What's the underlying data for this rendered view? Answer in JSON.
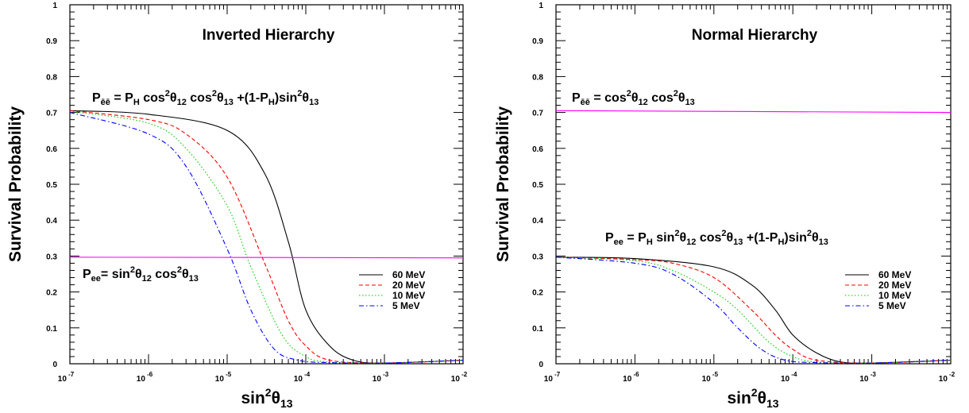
{
  "chart_data": [
    {
      "type": "line",
      "title": "Inverted Hierarchy",
      "ylabel": "Survival Probability",
      "xlabel": {
        "base": "sin",
        "sup": "2",
        "theta": "θ",
        "sub": "13"
      },
      "xscale": "log",
      "xlim": [
        1e-07,
        0.01
      ],
      "ylim": [
        0,
        1
      ],
      "x_ticks": [
        {
          "base": "10",
          "exp": "-7"
        },
        {
          "base": "10",
          "exp": "-6"
        },
        {
          "base": "10",
          "exp": "-5"
        },
        {
          "base": "10",
          "exp": "-4"
        },
        {
          "base": "10",
          "exp": "-3"
        },
        {
          "base": "10",
          "exp": "-2"
        }
      ],
      "y_ticks": [
        "0",
        "0.1",
        "0.2",
        "0.3",
        "0.4",
        "0.5",
        "0.6",
        "0.7",
        "0.8",
        "0.9",
        "1"
      ],
      "annotations": {
        "top": {
          "P": "P",
          "sub1": "ēē",
          "t1": " = P",
          "subH": "H",
          "t2": " cos",
          "sup1": "2",
          "theta": "θ",
          "sub12": "12",
          "t3": " cos",
          "sup2": "2",
          "sub13": "13",
          "t4": " +(1-P",
          "subH2": "H",
          "t5": ")sin",
          "sup3": "2",
          "sub13b": "13"
        },
        "bottom": {
          "P": "P",
          "sub1": "ee",
          "t1": "= sin",
          "sup1": "2",
          "theta": "θ",
          "sub12": "12",
          "t2": " cos",
          "sup2": "2",
          "sub13": "13"
        }
      },
      "legend": {
        "position": "right",
        "entries": [
          "60 MeV",
          "20 MeV",
          "10 MeV",
          "5 MeV"
        ]
      },
      "series": [
        {
          "name": "60 MeV",
          "color": "#000000",
          "dash": "solid",
          "x": [
            1e-07,
            1e-06,
            1e-05,
            3e-05,
            6e-05,
            0.0001,
            0.0002,
            0.0004,
            0.001,
            0.01
          ],
          "y": [
            0.705,
            0.695,
            0.65,
            0.53,
            0.34,
            0.15,
            0.05,
            0.01,
            0.002,
            0.01
          ]
        },
        {
          "name": "20 MeV",
          "color": "#ff0000",
          "dash": "dashed",
          "x": [
            1e-07,
            1e-06,
            3e-06,
            1e-05,
            3e-05,
            6e-05,
            0.0001,
            0.0002,
            0.001,
            0.01
          ],
          "y": [
            0.705,
            0.68,
            0.64,
            0.52,
            0.28,
            0.12,
            0.05,
            0.01,
            0.002,
            0.01
          ]
        },
        {
          "name": "10 MeV",
          "color": "#00cc00",
          "dash": "dotted",
          "x": [
            1e-07,
            1e-06,
            3e-06,
            1e-05,
            2e-05,
            5e-05,
            0.0001,
            0.0002,
            0.001,
            0.01
          ],
          "y": [
            0.703,
            0.67,
            0.6,
            0.44,
            0.27,
            0.08,
            0.02,
            0.005,
            0.002,
            0.01
          ]
        },
        {
          "name": "5 MeV",
          "color": "#0000ff",
          "dash": "dashdot",
          "x": [
            1e-07,
            1e-06,
            3e-06,
            1e-05,
            2e-05,
            4e-05,
            8e-05,
            0.0002,
            0.001,
            0.01
          ],
          "y": [
            0.7,
            0.64,
            0.55,
            0.32,
            0.15,
            0.04,
            0.01,
            0.003,
            0.002,
            0.01
          ]
        },
        {
          "name": "",
          "color": "#ff00ff",
          "dash": "solid",
          "x": [
            1e-07,
            0.01
          ],
          "y": [
            0.297,
            0.295
          ]
        }
      ]
    },
    {
      "type": "line",
      "title": "Normal Hierarchy",
      "ylabel": "Survival Probability",
      "xlabel": {
        "base": "sin",
        "sup": "2",
        "theta": "θ",
        "sub": "13"
      },
      "xscale": "log",
      "xlim": [
        1e-07,
        0.01
      ],
      "ylim": [
        0,
        1
      ],
      "x_ticks": [
        {
          "base": "10",
          "exp": "-7"
        },
        {
          "base": "10",
          "exp": "-6"
        },
        {
          "base": "10",
          "exp": "-5"
        },
        {
          "base": "10",
          "exp": "-4"
        },
        {
          "base": "10",
          "exp": "-3"
        },
        {
          "base": "10",
          "exp": "-2"
        }
      ],
      "y_ticks": [
        "0",
        "0.1",
        "0.2",
        "0.3",
        "0.4",
        "0.5",
        "0.6",
        "0.7",
        "0.8",
        "0.9",
        "1"
      ],
      "annotations": {
        "top": {
          "P": "P",
          "sub1": "ēē",
          "t1": " = cos",
          "sup1": "2",
          "theta": "θ",
          "sub12": "12",
          "t2": " cos",
          "sup2": "2",
          "sub13": "13"
        },
        "bottom": {
          "P": "P",
          "sub1": "ee",
          "t1": " = P",
          "subH": "H",
          "t2": " sin",
          "sup1": "2",
          "theta": "θ",
          "sub12": "12",
          "t3": " cos",
          "sup2": "2",
          "sub13": "13",
          "t4": " +(1-P",
          "subH2": "H",
          "t5": ")sin",
          "sup3": "2",
          "sub13b": "13"
        }
      },
      "legend": {
        "position": "right",
        "entries": [
          "60 MeV",
          "20 MeV",
          "10 MeV",
          "5 MeV"
        ]
      },
      "series": [
        {
          "name": "60 MeV",
          "color": "#000000",
          "dash": "solid",
          "x": [
            1e-07,
            1e-06,
            1e-05,
            3e-05,
            6e-05,
            0.0001,
            0.0002,
            0.0004,
            0.001,
            0.01
          ],
          "y": [
            0.297,
            0.293,
            0.27,
            0.22,
            0.15,
            0.08,
            0.03,
            0.005,
            0.002,
            0.01
          ]
        },
        {
          "name": "20 MeV",
          "color": "#ff0000",
          "dash": "dashed",
          "x": [
            1e-07,
            1e-06,
            3e-06,
            1e-05,
            3e-05,
            6e-05,
            0.0001,
            0.0002,
            0.001,
            0.01
          ],
          "y": [
            0.297,
            0.29,
            0.28,
            0.24,
            0.15,
            0.08,
            0.04,
            0.01,
            0.002,
            0.01
          ]
        },
        {
          "name": "10 MeV",
          "color": "#00cc00",
          "dash": "dotted",
          "x": [
            1e-07,
            1e-06,
            3e-06,
            1e-05,
            2e-05,
            5e-05,
            0.0001,
            0.0002,
            0.001,
            0.01
          ],
          "y": [
            0.297,
            0.287,
            0.26,
            0.2,
            0.15,
            0.06,
            0.02,
            0.005,
            0.002,
            0.01
          ]
        },
        {
          "name": "5 MeV",
          "color": "#0000ff",
          "dash": "dashdot",
          "x": [
            1e-07,
            1e-06,
            3e-06,
            1e-05,
            2e-05,
            4e-05,
            8e-05,
            0.0002,
            0.001,
            0.01
          ],
          "y": [
            0.297,
            0.28,
            0.25,
            0.17,
            0.1,
            0.04,
            0.01,
            0.003,
            0.002,
            0.01
          ]
        },
        {
          "name": "",
          "color": "#ff00ff",
          "dash": "solid",
          "x": [
            1e-07,
            0.01
          ],
          "y": [
            0.705,
            0.7
          ]
        }
      ]
    }
  ]
}
